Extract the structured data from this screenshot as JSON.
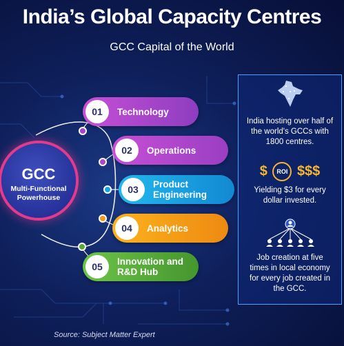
{
  "title": "India’s Global Capacity Centres",
  "subtitle": "GCC Capital of the World",
  "hub": {
    "title": "GCC",
    "subtitle": "Multi-Functional Powerhouse",
    "ring_color": "#e23b8e"
  },
  "items": [
    {
      "number": "01",
      "label": "Technology",
      "color": "#a546c9"
    },
    {
      "number": "02",
      "label": "Operations",
      "color": "#b046c2"
    },
    {
      "number": "03",
      "label": "Product Engineering",
      "color": "#18a6e0"
    },
    {
      "number": "04",
      "label": "Analytics",
      "color": "#f49a17"
    },
    {
      "number": "05",
      "label": "Innovation and R&D Hub",
      "color": "#5aa83a"
    }
  ],
  "facts": [
    {
      "icon": "india-map-icon",
      "text": "India hosting over half of the world's GCCs with 1800 centres."
    },
    {
      "icon": "roi-dollar-icon",
      "symbol_left": "$",
      "roi": "ROI",
      "symbol_right": "$$$",
      "text": "Yielding $3 for every dollar invested."
    },
    {
      "icon": "people-network-icon",
      "text": "Job creation at five times in local economy for every job created in the GCC."
    }
  ],
  "source": "Source: Subject Matter Expert"
}
